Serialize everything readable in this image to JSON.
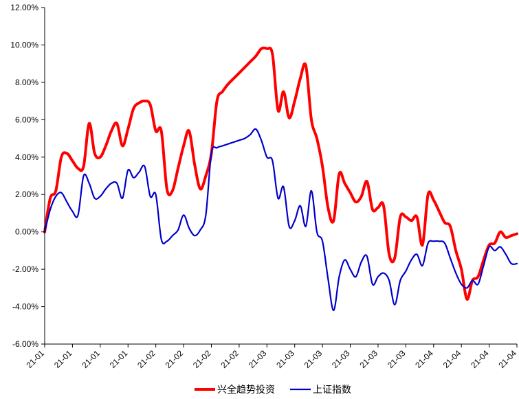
{
  "chart_data": {
    "type": "line",
    "title": "",
    "xlabel": "",
    "ylabel": "",
    "ylim": [
      -6,
      12
    ],
    "yticks": [
      "12.00%",
      "10.00%",
      "8.00%",
      "6.00%",
      "4.00%",
      "2.00%",
      "0.00%",
      "-2.00%",
      "-4.00%",
      "-6.00%"
    ],
    "ytick_values": [
      12,
      10,
      8,
      6,
      4,
      2,
      0,
      -2,
      -4,
      -6
    ],
    "xtick_labels": [
      "21-01",
      "21-01",
      "21-01",
      "21-01",
      "21-02",
      "21-02",
      "21-02",
      "21-02",
      "21-03",
      "21-03",
      "21-03",
      "21-03",
      "21-03",
      "21-03",
      "21-04",
      "21-04",
      "21-04",
      "21-04"
    ],
    "x_count": 69,
    "grid": false,
    "legend_position": "bottom-center",
    "series": [
      {
        "name": "兴全趋势投资",
        "color": "#ff0000",
        "values": [
          0.0,
          1.8,
          2.2,
          4.0,
          4.2,
          3.8,
          3.4,
          3.5,
          5.8,
          4.2,
          4.0,
          4.6,
          5.4,
          5.8,
          4.6,
          5.5,
          6.6,
          6.9,
          7.0,
          6.8,
          5.4,
          5.4,
          2.3,
          2.2,
          3.4,
          4.6,
          5.4,
          3.6,
          2.3,
          3.0,
          4.2,
          7.0,
          7.5,
          7.9,
          8.2,
          8.5,
          8.8,
          9.1,
          9.4,
          9.8,
          9.8,
          9.5,
          6.5,
          7.5,
          6.1,
          7.0,
          8.2,
          8.9,
          6.0,
          5.0,
          3.5,
          1.3,
          0.6,
          3.1,
          2.6,
          2.1,
          1.6,
          1.9,
          2.7,
          1.2,
          1.3,
          1.4,
          -1.2,
          -1.4,
          0.8,
          0.8,
          0.6,
          0.8,
          -0.7
        ]
      },
      {
        "name": "上证指数",
        "color": "#0000cc",
        "values": [
          0.0,
          1.2,
          1.9,
          2.1,
          1.6,
          1.1,
          0.9,
          3.0,
          2.6,
          1.8,
          1.9,
          2.3,
          2.6,
          2.6,
          1.8,
          3.3,
          2.9,
          3.2,
          3.5,
          1.9,
          2.0,
          -0.4,
          -0.5,
          -0.2,
          0.1,
          0.9,
          0.2,
          -0.2,
          0.1,
          0.9,
          4.2,
          4.5,
          4.6,
          4.7,
          4.8,
          4.9,
          5.0,
          5.2,
          5.5,
          4.9,
          4.0,
          3.8,
          1.8,
          2.4,
          0.3,
          0.6,
          1.4,
          0.3,
          2.2,
          0.0,
          -0.5,
          -2.5,
          -4.2,
          -2.4,
          -1.5,
          -2.0,
          -2.4,
          -1.6,
          -1.3,
          -2.8,
          -2.4,
          -2.2,
          -2.6,
          -3.9,
          -2.6,
          -2.1,
          -1.5,
          -1.2,
          -1.8
        ]
      }
    ],
    "series_tail": [
      {
        "name": "兴全趋势投资",
        "values": [
          2.0,
          1.7,
          1.1,
          0.5,
          0.3,
          -1.0,
          -2.0,
          -3.6,
          -2.6,
          -2.4,
          -1.5,
          -0.7,
          -0.6,
          0.0,
          -0.3,
          -0.2,
          -0.1
        ]
      },
      {
        "name": "上证指数",
        "values": [
          -0.6,
          -0.5,
          -0.5,
          -0.6,
          -1.4,
          -2.2,
          -2.8,
          -3.0,
          -2.6,
          -2.8,
          -1.8,
          -0.8,
          -1.0,
          -0.8,
          -1.2,
          -1.7,
          -1.7
        ]
      }
    ]
  },
  "legend": {
    "items": [
      {
        "label": "兴全趋势投资",
        "color": "#ff0000"
      },
      {
        "label": "上证指数",
        "color": "#0000cc"
      }
    ]
  }
}
